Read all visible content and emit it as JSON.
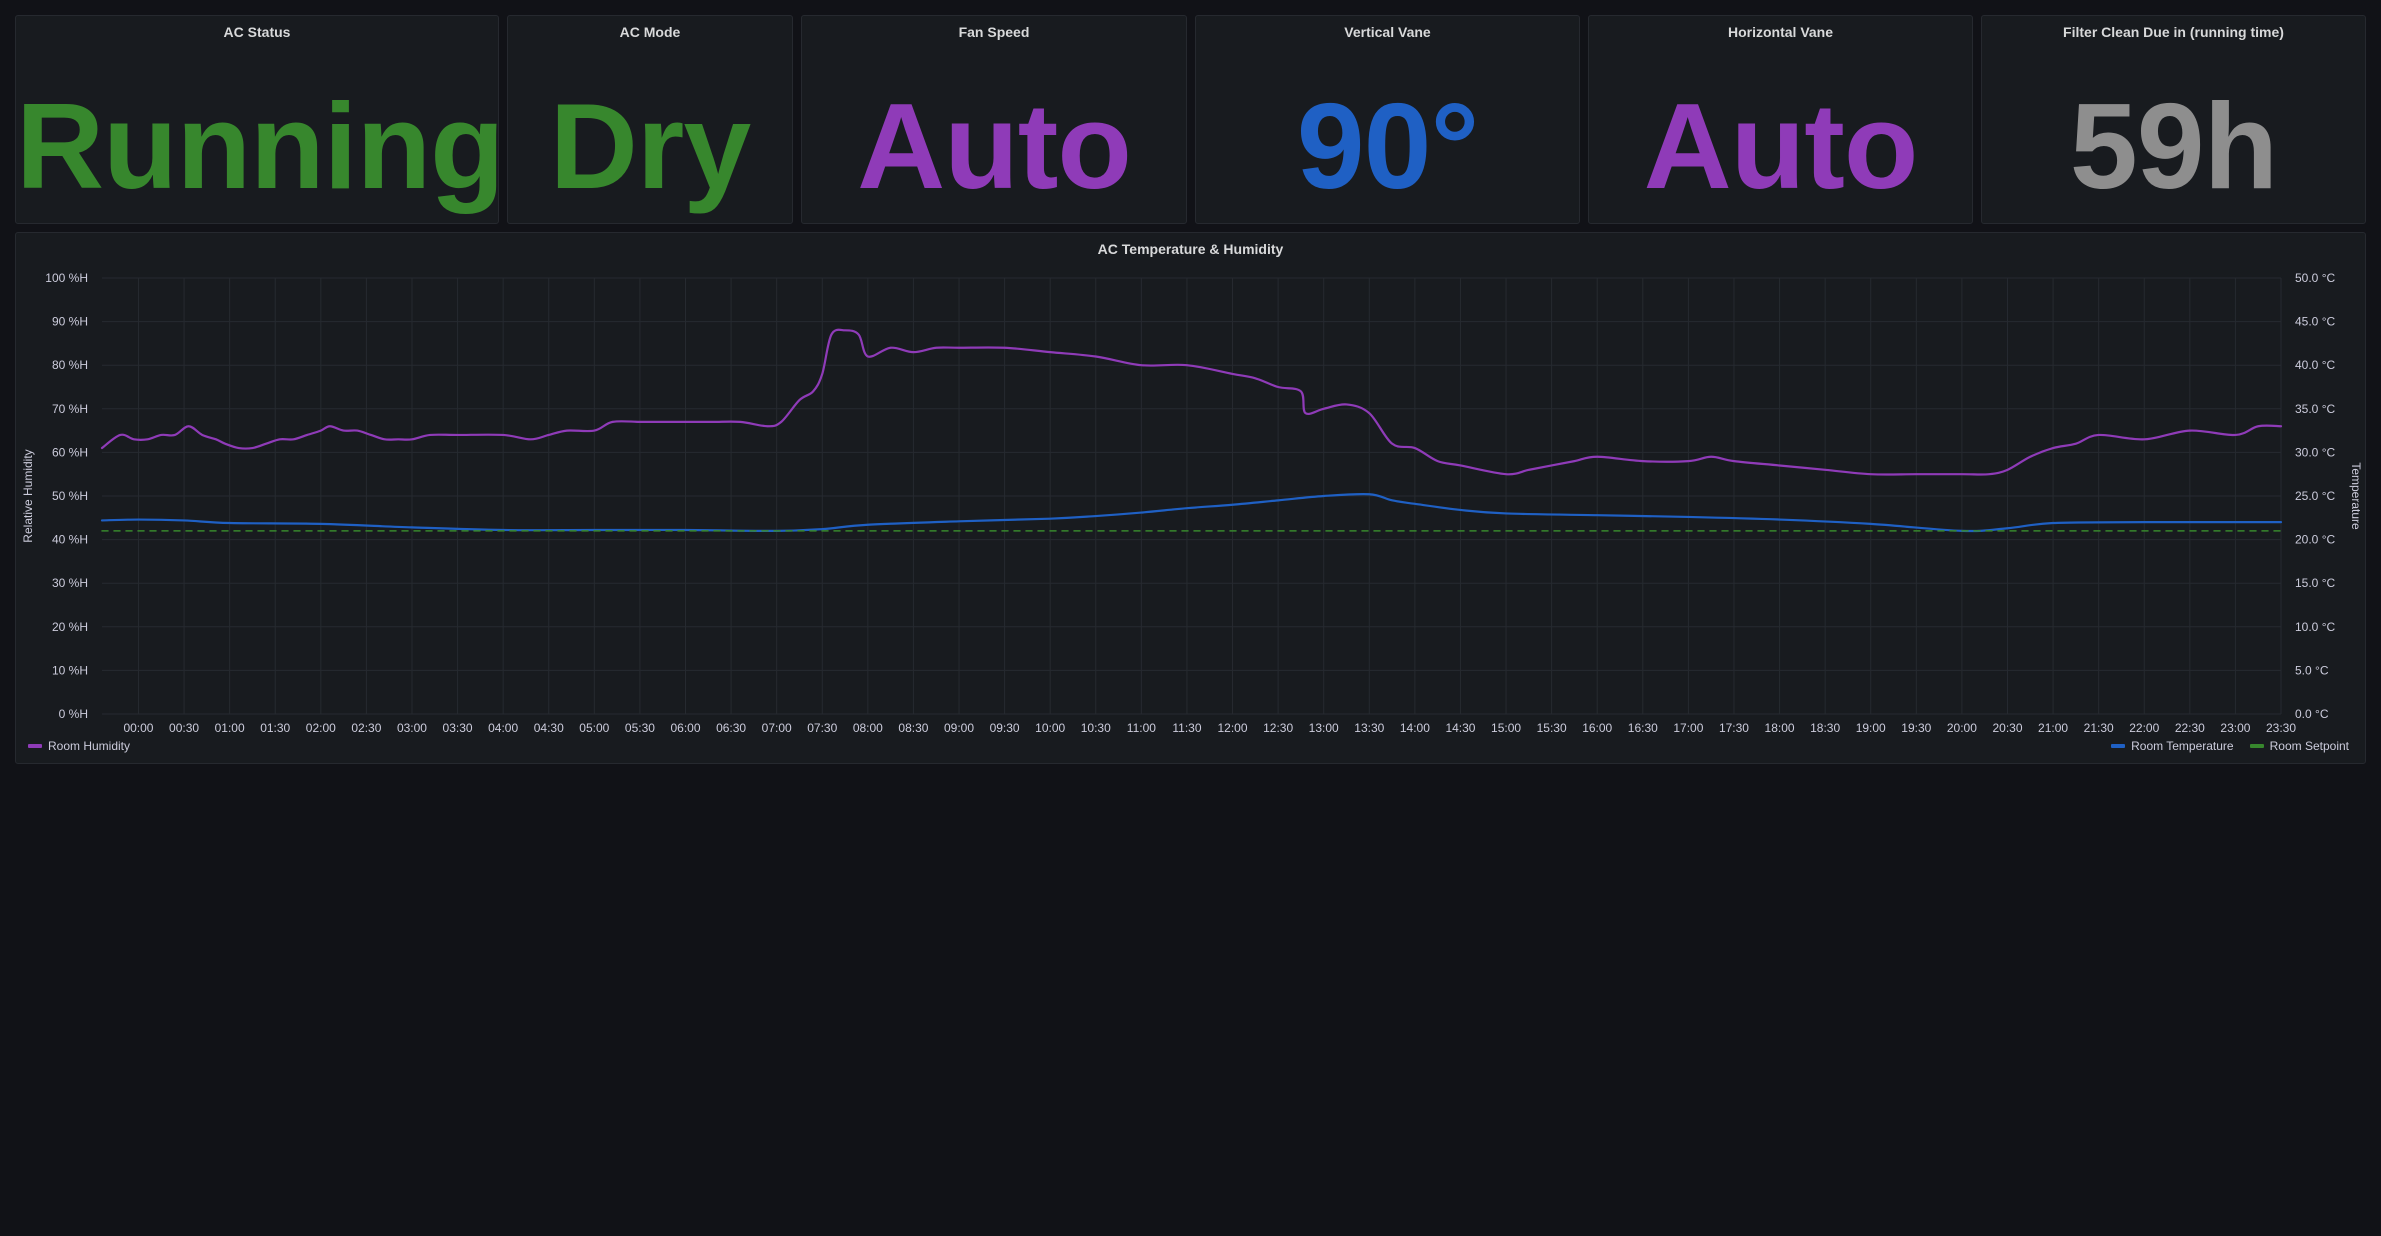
{
  "stats": [
    {
      "title": "AC Status",
      "value": "Running",
      "color": "#37872d"
    },
    {
      "title": "AC Mode",
      "value": "Dry",
      "color": "#37872d"
    },
    {
      "title": "Fan Speed",
      "value": "Auto",
      "color": "#8f3bb8"
    },
    {
      "title": "Vertical Vane",
      "value": "90°",
      "color": "#1f60c4"
    },
    {
      "title": "Horizontal Vane",
      "value": "Auto",
      "color": "#8f3bb8"
    },
    {
      "title": "Filter Clean Due in (running time)",
      "value": "59h",
      "color": "#8e8e8e"
    }
  ],
  "legend": {
    "humidity": "Room Humidity",
    "temperature": "Room Temperature",
    "setpoint": "Room Setpoint"
  },
  "colors": {
    "humidity": "#8f3bb8",
    "temperature": "#1f60c4",
    "setpoint": "#37872d"
  },
  "chart_data": {
    "type": "line",
    "title": "AC Temperature & Humidity",
    "ylabel_left": "Relative Humidity",
    "ylabel_right": "Temperature",
    "ylim_left": [
      0,
      100
    ],
    "ylim_right": [
      0,
      50
    ],
    "y_ticks_left": [
      "0 %H",
      "10 %H",
      "20 %H",
      "30 %H",
      "40 %H",
      "50 %H",
      "60 %H",
      "70 %H",
      "80 %H",
      "90 %H",
      "100 %H"
    ],
    "y_ticks_right": [
      "0.0 °C",
      "5.0 °C",
      "10.0 °C",
      "15.0 °C",
      "20.0 °C",
      "25.0 °C",
      "30.0 °C",
      "35.0 °C",
      "40.0 °C",
      "45.0 °C",
      "50.0 °C"
    ],
    "x_ticks": [
      "00:00",
      "00:30",
      "01:00",
      "01:30",
      "02:00",
      "02:30",
      "03:00",
      "03:30",
      "04:00",
      "04:30",
      "05:00",
      "05:30",
      "06:00",
      "06:30",
      "07:00",
      "07:30",
      "08:00",
      "08:30",
      "09:00",
      "09:30",
      "10:00",
      "10:30",
      "11:00",
      "11:30",
      "12:00",
      "12:30",
      "13:00",
      "13:30",
      "14:00",
      "14:30",
      "15:00",
      "15:30",
      "16:00",
      "16:30",
      "17:00",
      "17:30",
      "18:00",
      "18:30",
      "19:00",
      "19:30",
      "20:00",
      "20:30",
      "21:00",
      "21:30",
      "22:00",
      "22:30",
      "23:00",
      "23:30"
    ],
    "x_hours_range": [
      -0.4,
      23.5
    ],
    "grid": true,
    "legend_left": [
      "Room Humidity"
    ],
    "legend_right": [
      "Room Temperature",
      "Room Setpoint"
    ],
    "series": [
      {
        "name": "Room Humidity",
        "axis": "left",
        "x": [
          -0.4,
          -0.2,
          -0.05,
          0.1,
          0.25,
          0.4,
          0.55,
          0.7,
          0.85,
          0.95,
          1.1,
          1.25,
          1.4,
          1.55,
          1.7,
          1.85,
          2.0,
          2.1,
          2.25,
          2.4,
          2.55,
          2.7,
          2.85,
          3.0,
          3.2,
          3.5,
          4.0,
          4.3,
          4.5,
          4.7,
          5.0,
          5.2,
          5.5,
          5.7,
          6.0,
          6.3,
          6.6,
          6.9,
          7.05,
          7.25,
          7.4,
          7.5,
          7.6,
          7.75,
          7.9,
          8.0,
          8.25,
          8.5,
          8.75,
          9.0,
          9.5,
          10.0,
          10.5,
          11.0,
          11.5,
          12.0,
          12.25,
          12.5,
          12.75,
          12.8,
          13.0,
          13.25,
          13.5,
          13.75,
          14.0,
          14.25,
          14.5,
          15.0,
          15.25,
          15.5,
          15.75,
          16.0,
          16.5,
          17.0,
          17.25,
          17.5,
          18.0,
          18.5,
          19.0,
          19.5,
          20.0,
          20.3,
          20.5,
          20.75,
          21.0,
          21.25,
          21.5,
          22.0,
          22.5,
          23.0,
          23.25,
          23.5
        ],
        "values": [
          61,
          64,
          63,
          63,
          64,
          64,
          66,
          64,
          63,
          62,
          61,
          61,
          62,
          63,
          63,
          64,
          65,
          66,
          65,
          65,
          64,
          63,
          63,
          63,
          64,
          64,
          64,
          63,
          64,
          65,
          65,
          67,
          67,
          67,
          67,
          67,
          67,
          66,
          67,
          72,
          74,
          78,
          87,
          88,
          87,
          82,
          84,
          83,
          84,
          84,
          84,
          83,
          82,
          80,
          80,
          78,
          77,
          75,
          74,
          69,
          70,
          71,
          69,
          62,
          61,
          58,
          57,
          55,
          56,
          57,
          58,
          59,
          58,
          58,
          59,
          58,
          57,
          56,
          55,
          55,
          55,
          55,
          56,
          59,
          61,
          62,
          64,
          63,
          65,
          64,
          66,
          66
        ],
        "color": "#8f3bb8"
      },
      {
        "name": "Room Temperature",
        "axis": "right",
        "x": [
          -0.4,
          0.0,
          0.5,
          1.0,
          2.0,
          3.0,
          4.0,
          5.0,
          6.0,
          7.0,
          7.5,
          8.0,
          9.0,
          10.0,
          10.5,
          11.0,
          11.5,
          12.0,
          12.5,
          13.0,
          13.5,
          13.75,
          14.0,
          14.5,
          15.0,
          16.0,
          17.0,
          18.0,
          19.0,
          20.0,
          20.5,
          21.0,
          22.0,
          23.0,
          23.5
        ],
        "values": [
          22.2,
          22.3,
          22.2,
          21.9,
          21.8,
          21.4,
          21.1,
          21.1,
          21.1,
          21.0,
          21.2,
          21.7,
          22.1,
          22.4,
          22.7,
          23.1,
          23.6,
          24.0,
          24.5,
          25.0,
          25.2,
          24.5,
          24.1,
          23.4,
          23.0,
          22.8,
          22.6,
          22.3,
          21.8,
          21.0,
          21.3,
          21.9,
          22.0,
          22.0,
          22.0
        ],
        "color": "#1f60c4"
      },
      {
        "name": "Room Setpoint",
        "axis": "right",
        "x": [
          -0.4,
          23.5
        ],
        "values": [
          21.0,
          21.0
        ],
        "color": "#37872d",
        "dashed": true
      }
    ]
  }
}
